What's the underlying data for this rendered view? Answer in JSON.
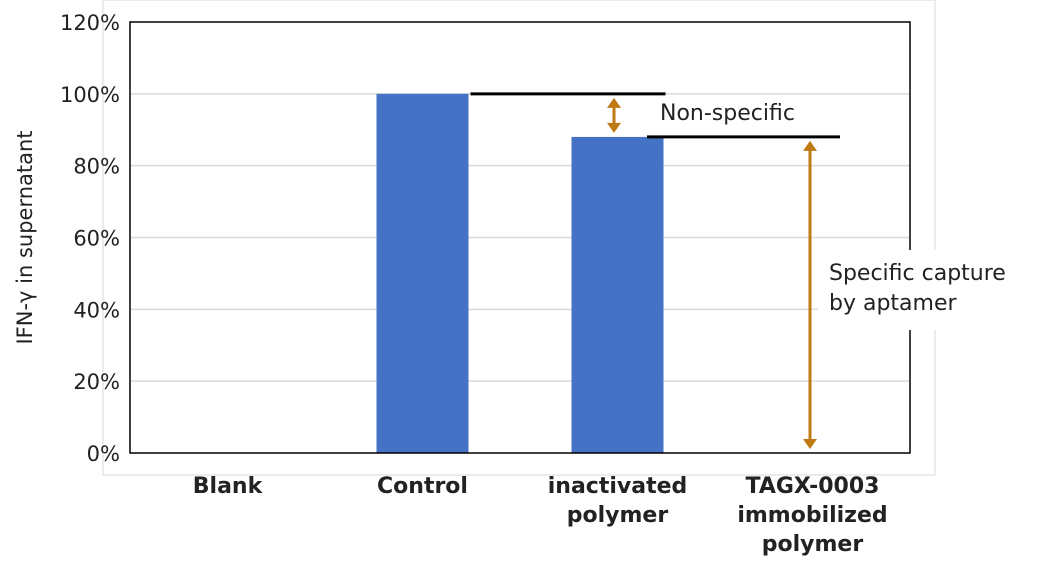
{
  "chart_data": {
    "type": "bar",
    "categories": [
      [
        "Blank"
      ],
      [
        "Control"
      ],
      [
        "inactivated",
        "polymer"
      ],
      [
        "TAGX-0003",
        "immobilized",
        "polymer"
      ]
    ],
    "values": [
      0,
      100,
      88,
      0
    ],
    "ylabel": "IFN-γ in supernatant",
    "ylim": [
      0,
      120
    ],
    "yticks": [
      0,
      20,
      40,
      60,
      80,
      100,
      120
    ],
    "ytick_labels": [
      "0%",
      "20%",
      "40%",
      "60%",
      "80%",
      "100%",
      "120%"
    ],
    "grid": true,
    "bar_color": "#4472c4",
    "arrow_color": "#c07a14",
    "annotations": [
      {
        "text_lines": [
          "Non-specific"
        ],
        "from_value": 100,
        "to_value": 88,
        "between": [
          "Control",
          "inactivated polymer"
        ]
      },
      {
        "text_lines": [
          "Specific capture",
          "by aptamer"
        ],
        "from_value": 88,
        "to_value": 0,
        "between": [
          "inactivated polymer",
          "TAGX-0003 immobilized polymer"
        ]
      }
    ]
  }
}
